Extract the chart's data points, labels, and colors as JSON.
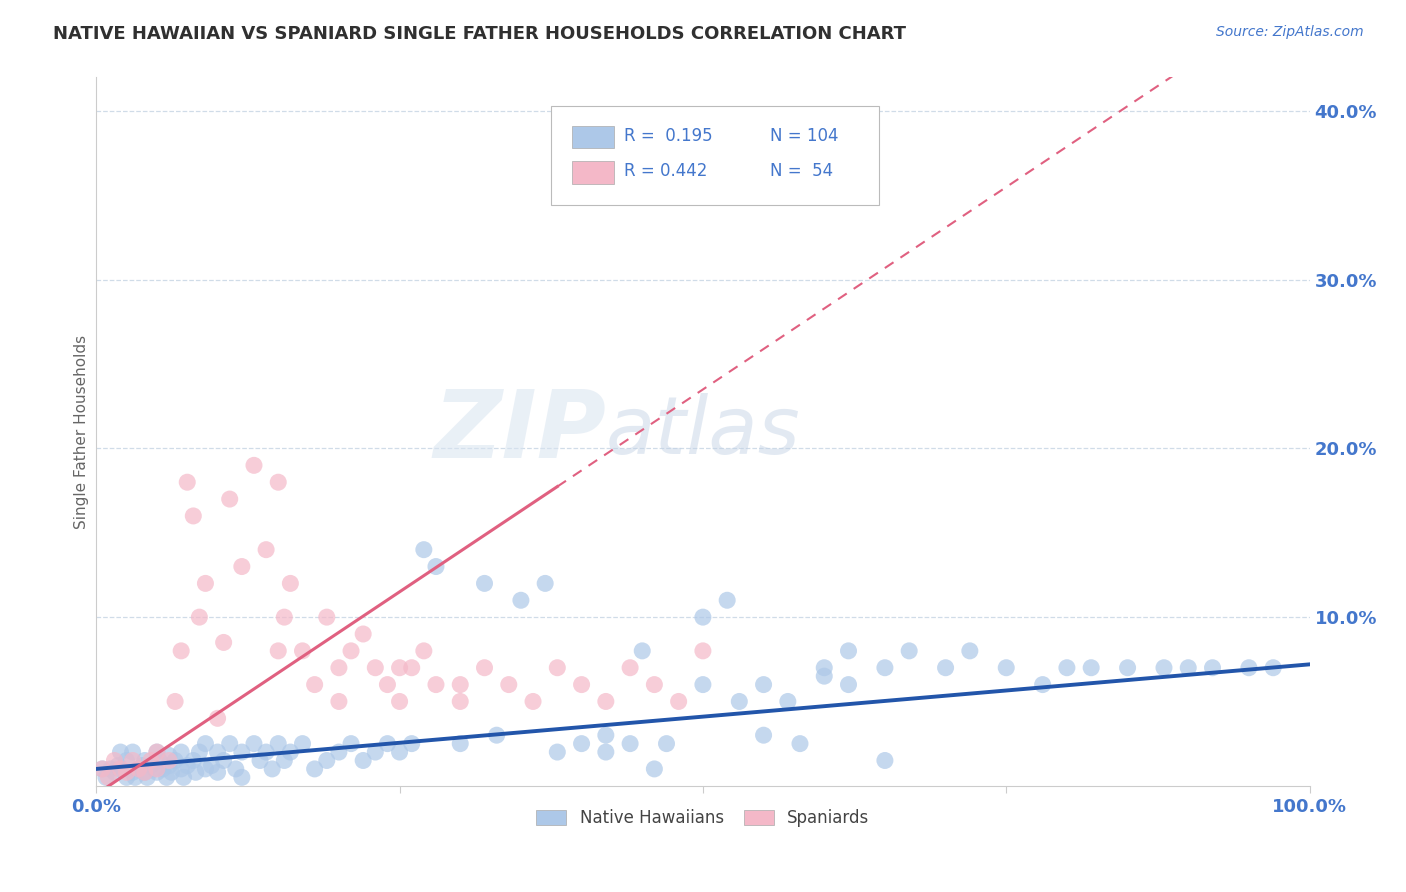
{
  "title": "NATIVE HAWAIIAN VS SPANIARD SINGLE FATHER HOUSEHOLDS CORRELATION CHART",
  "source": "Source: ZipAtlas.com",
  "ylabel": "Single Father Households",
  "xlim": [
    0,
    1.0
  ],
  "ylim": [
    0,
    0.42
  ],
  "blue_color": "#adc8e8",
  "pink_color": "#f4b8c8",
  "blue_line_color": "#2255aa",
  "pink_line_color": "#e06080",
  "title_color": "#303030",
  "axis_label_color": "#4477cc",
  "source_color": "#4477cc",
  "watermark_color": "#d0dff0",
  "background_color": "#ffffff",
  "grid_color": "#d0dce8",
  "r_nh": 0.195,
  "n_nh": 104,
  "r_sp": 0.442,
  "n_sp": 54,
  "nh_scatter_x": [
    0.005,
    0.008,
    0.012,
    0.015,
    0.018,
    0.02,
    0.02,
    0.025,
    0.025,
    0.03,
    0.03,
    0.032,
    0.035,
    0.038,
    0.04,
    0.04,
    0.042,
    0.045,
    0.048,
    0.05,
    0.05,
    0.052,
    0.055,
    0.058,
    0.06,
    0.06,
    0.062,
    0.065,
    0.07,
    0.07,
    0.072,
    0.075,
    0.08,
    0.082,
    0.085,
    0.09,
    0.09,
    0.095,
    0.1,
    0.1,
    0.105,
    0.11,
    0.115,
    0.12,
    0.12,
    0.13,
    0.135,
    0.14,
    0.145,
    0.15,
    0.155,
    0.16,
    0.17,
    0.18,
    0.19,
    0.2,
    0.21,
    0.22,
    0.23,
    0.24,
    0.25,
    0.26,
    0.27,
    0.28,
    0.3,
    0.32,
    0.33,
    0.35,
    0.37,
    0.38,
    0.4,
    0.42,
    0.45,
    0.47,
    0.5,
    0.52,
    0.55,
    0.58,
    0.6,
    0.62,
    0.65,
    0.67,
    0.7,
    0.72,
    0.75,
    0.78,
    0.8,
    0.82,
    0.85,
    0.88,
    0.9,
    0.92,
    0.95,
    0.97,
    0.5,
    0.53,
    0.55,
    0.57,
    0.6,
    0.62,
    0.65,
    0.42,
    0.44,
    0.46
  ],
  "nh_scatter_y": [
    0.01,
    0.005,
    0.01,
    0.008,
    0.012,
    0.01,
    0.02,
    0.005,
    0.015,
    0.008,
    0.02,
    0.005,
    0.01,
    0.012,
    0.008,
    0.015,
    0.005,
    0.012,
    0.01,
    0.02,
    0.008,
    0.015,
    0.01,
    0.005,
    0.012,
    0.018,
    0.008,
    0.015,
    0.01,
    0.02,
    0.005,
    0.012,
    0.015,
    0.008,
    0.02,
    0.01,
    0.025,
    0.012,
    0.008,
    0.02,
    0.015,
    0.025,
    0.01,
    0.02,
    0.005,
    0.025,
    0.015,
    0.02,
    0.01,
    0.025,
    0.015,
    0.02,
    0.025,
    0.01,
    0.015,
    0.02,
    0.025,
    0.015,
    0.02,
    0.025,
    0.02,
    0.025,
    0.14,
    0.13,
    0.025,
    0.12,
    0.03,
    0.11,
    0.12,
    0.02,
    0.025,
    0.03,
    0.08,
    0.025,
    0.1,
    0.11,
    0.03,
    0.025,
    0.07,
    0.08,
    0.07,
    0.08,
    0.07,
    0.08,
    0.07,
    0.06,
    0.07,
    0.07,
    0.07,
    0.07,
    0.07,
    0.07,
    0.07,
    0.07,
    0.06,
    0.05,
    0.06,
    0.05,
    0.065,
    0.06,
    0.015,
    0.02,
    0.025,
    0.01
  ],
  "sp_scatter_x": [
    0.005,
    0.01,
    0.015,
    0.02,
    0.025,
    0.03,
    0.035,
    0.04,
    0.045,
    0.05,
    0.05,
    0.06,
    0.065,
    0.07,
    0.075,
    0.08,
    0.085,
    0.09,
    0.1,
    0.105,
    0.11,
    0.12,
    0.13,
    0.14,
    0.15,
    0.155,
    0.16,
    0.17,
    0.18,
    0.19,
    0.2,
    0.21,
    0.22,
    0.23,
    0.24,
    0.25,
    0.26,
    0.27,
    0.28,
    0.3,
    0.32,
    0.34,
    0.36,
    0.38,
    0.4,
    0.42,
    0.44,
    0.46,
    0.48,
    0.5,
    0.3,
    0.25,
    0.2,
    0.15
  ],
  "sp_scatter_y": [
    0.01,
    0.005,
    0.015,
    0.01,
    0.008,
    0.015,
    0.01,
    0.008,
    0.015,
    0.01,
    0.02,
    0.015,
    0.05,
    0.08,
    0.18,
    0.16,
    0.1,
    0.12,
    0.04,
    0.085,
    0.17,
    0.13,
    0.19,
    0.14,
    0.18,
    0.1,
    0.12,
    0.08,
    0.06,
    0.1,
    0.07,
    0.08,
    0.09,
    0.07,
    0.06,
    0.05,
    0.07,
    0.08,
    0.06,
    0.05,
    0.07,
    0.06,
    0.05,
    0.07,
    0.06,
    0.05,
    0.07,
    0.06,
    0.05,
    0.08,
    0.06,
    0.07,
    0.05,
    0.08
  ]
}
